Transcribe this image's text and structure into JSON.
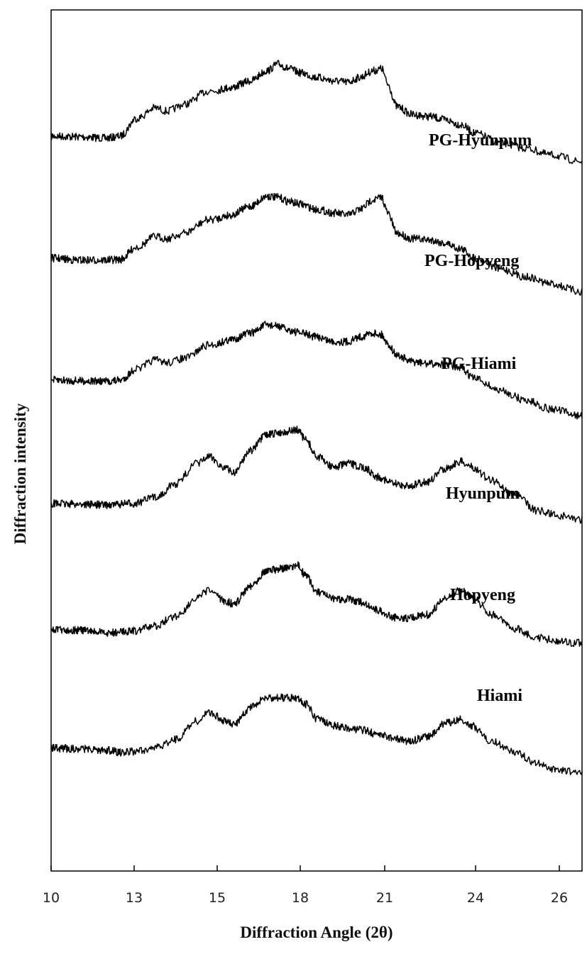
{
  "chart_data": {
    "type": "line",
    "xlabel": "Diffraction Angle (2θ)",
    "ylabel": "Diffraction intensity",
    "xlim": [
      10,
      26.5
    ],
    "x_ticks": [
      "10",
      "13",
      "15",
      "18",
      "21",
      "24",
      "26"
    ],
    "grid": false,
    "legend": "none",
    "y_tick_labels": "none",
    "series": [
      {
        "name": "PG-Hyunpum",
        "offset": 5,
        "points": [
          [
            10,
            0.98
          ],
          [
            11,
            0.97
          ],
          [
            12,
            0.95
          ],
          [
            12.5,
            0.98
          ],
          [
            13.1,
            1.25
          ],
          [
            13.5,
            1.4
          ],
          [
            13.8,
            1.35
          ],
          [
            14.2,
            1.45
          ],
          [
            14.8,
            1.65
          ],
          [
            15.5,
            1.7
          ],
          [
            16.2,
            1.8
          ],
          [
            16.8,
            1.95
          ],
          [
            17.2,
            2.05
          ],
          [
            17.6,
            1.98
          ],
          [
            18,
            1.92
          ],
          [
            18.6,
            1.85
          ],
          [
            19.2,
            1.8
          ],
          [
            19.7,
            1.78
          ],
          [
            20.1,
            1.85
          ],
          [
            20.6,
            1.95
          ],
          [
            20.9,
            1.98
          ],
          [
            21.1,
            1.75
          ],
          [
            21.4,
            1.42
          ],
          [
            21.9,
            1.3
          ],
          [
            22.5,
            1.27
          ],
          [
            23,
            1.22
          ],
          [
            23.5,
            1.15
          ],
          [
            24,
            1.02
          ],
          [
            24.6,
            0.88
          ],
          [
            25.2,
            0.8
          ],
          [
            25.8,
            0.7
          ],
          [
            26.5,
            0.6
          ]
        ]
      },
      {
        "name": "PG-Hopyeng",
        "offset": 4,
        "points": [
          [
            10,
            0.98
          ],
          [
            11,
            0.95
          ],
          [
            12,
            0.95
          ],
          [
            12.5,
            0.96
          ],
          [
            13.1,
            1.15
          ],
          [
            13.5,
            1.3
          ],
          [
            13.8,
            1.27
          ],
          [
            14.2,
            1.35
          ],
          [
            14.8,
            1.55
          ],
          [
            15.5,
            1.62
          ],
          [
            16.2,
            1.75
          ],
          [
            16.8,
            1.9
          ],
          [
            17.2,
            1.88
          ],
          [
            17.6,
            1.82
          ],
          [
            18,
            1.78
          ],
          [
            18.6,
            1.7
          ],
          [
            19.2,
            1.65
          ],
          [
            19.7,
            1.62
          ],
          [
            20.1,
            1.7
          ],
          [
            20.6,
            1.85
          ],
          [
            20.9,
            1.88
          ],
          [
            21.1,
            1.65
          ],
          [
            21.4,
            1.35
          ],
          [
            21.9,
            1.27
          ],
          [
            22.5,
            1.25
          ],
          [
            23,
            1.2
          ],
          [
            23.5,
            1.12
          ],
          [
            24,
            0.98
          ],
          [
            24.6,
            0.82
          ],
          [
            25.2,
            0.7
          ],
          [
            25.8,
            0.6
          ],
          [
            26.5,
            0.48
          ]
        ]
      },
      {
        "name": "PG-Hiami",
        "offset": 3,
        "points": [
          [
            10,
            0.98
          ],
          [
            11,
            0.97
          ],
          [
            12,
            0.96
          ],
          [
            12.5,
            0.98
          ],
          [
            13.1,
            1.15
          ],
          [
            13.5,
            1.28
          ],
          [
            13.8,
            1.24
          ],
          [
            14.2,
            1.3
          ],
          [
            14.8,
            1.5
          ],
          [
            15.5,
            1.58
          ],
          [
            16.2,
            1.68
          ],
          [
            16.8,
            1.8
          ],
          [
            17.2,
            1.78
          ],
          [
            17.6,
            1.72
          ],
          [
            18,
            1.68
          ],
          [
            18.6,
            1.62
          ],
          [
            19.2,
            1.55
          ],
          [
            19.7,
            1.55
          ],
          [
            20.1,
            1.62
          ],
          [
            20.6,
            1.68
          ],
          [
            20.9,
            1.65
          ],
          [
            21.1,
            1.52
          ],
          [
            21.4,
            1.35
          ],
          [
            21.9,
            1.25
          ],
          [
            22.5,
            1.22
          ],
          [
            23,
            1.22
          ],
          [
            23.5,
            1.15
          ],
          [
            24,
            1
          ],
          [
            24.6,
            0.82
          ],
          [
            25.2,
            0.68
          ],
          [
            25.8,
            0.55
          ],
          [
            26.5,
            0.45
          ]
        ]
      },
      {
        "name": "Hyunpum",
        "offset": 2,
        "points": [
          [
            10,
            0.96
          ],
          [
            11,
            0.95
          ],
          [
            12,
            0.94
          ],
          [
            13,
            0.96
          ],
          [
            13.5,
            1.05
          ],
          [
            14,
            1.25
          ],
          [
            14.5,
            1.55
          ],
          [
            14.8,
            1.65
          ],
          [
            15.2,
            1.5
          ],
          [
            15.6,
            1.42
          ],
          [
            16.2,
            1.75
          ],
          [
            16.8,
            1.98
          ],
          [
            17.4,
            2.02
          ],
          [
            17.9,
            2.05
          ],
          [
            18.2,
            1.9
          ],
          [
            18.6,
            1.65
          ],
          [
            19.2,
            1.5
          ],
          [
            19.7,
            1.55
          ],
          [
            20.2,
            1.5
          ],
          [
            20.8,
            1.35
          ],
          [
            21.3,
            1.25
          ],
          [
            21.8,
            1.22
          ],
          [
            22.4,
            1.28
          ],
          [
            23,
            1.48
          ],
          [
            23.5,
            1.58
          ],
          [
            23.9,
            1.5
          ],
          [
            24.4,
            1.3
          ],
          [
            24.9,
            1.1
          ],
          [
            25.5,
            0.85
          ],
          [
            26,
            0.78
          ],
          [
            26.5,
            0.72
          ]
        ]
      },
      {
        "name": "Hopyeng",
        "offset": 1,
        "points": [
          [
            10,
            0.9
          ],
          [
            11,
            0.89
          ],
          [
            12,
            0.85
          ],
          [
            13,
            0.88
          ],
          [
            13.5,
            0.95
          ],
          [
            14,
            1.1
          ],
          [
            14.5,
            1.35
          ],
          [
            14.8,
            1.48
          ],
          [
            15.2,
            1.33
          ],
          [
            15.6,
            1.28
          ],
          [
            16.2,
            1.55
          ],
          [
            16.8,
            1.78
          ],
          [
            17.4,
            1.8
          ],
          [
            17.9,
            1.85
          ],
          [
            18.2,
            1.7
          ],
          [
            18.6,
            1.45
          ],
          [
            19.2,
            1.35
          ],
          [
            19.7,
            1.35
          ],
          [
            20.2,
            1.3
          ],
          [
            20.8,
            1.18
          ],
          [
            21.3,
            1.08
          ],
          [
            21.8,
            1.07
          ],
          [
            22.4,
            1.12
          ],
          [
            23,
            1.35
          ],
          [
            23.5,
            1.48
          ],
          [
            23.9,
            1.38
          ],
          [
            24.4,
            1.12
          ],
          [
            24.9,
            0.92
          ],
          [
            25.5,
            0.78
          ],
          [
            26,
            0.72
          ],
          [
            26.5,
            0.7
          ]
        ]
      },
      {
        "name": "Hiami",
        "offset": 0,
        "points": [
          [
            10,
            0.95
          ],
          [
            11,
            0.94
          ],
          [
            12,
            0.92
          ],
          [
            12.6,
            0.88
          ],
          [
            13,
            0.9
          ],
          [
            13.5,
            0.95
          ],
          [
            14,
            1.08
          ],
          [
            14.5,
            1.35
          ],
          [
            14.8,
            1.48
          ],
          [
            15.2,
            1.35
          ],
          [
            15.6,
            1.3
          ],
          [
            16.2,
            1.55
          ],
          [
            16.8,
            1.7
          ],
          [
            17.4,
            1.7
          ],
          [
            17.9,
            1.7
          ],
          [
            18.2,
            1.6
          ],
          [
            18.6,
            1.38
          ],
          [
            19.2,
            1.28
          ],
          [
            19.7,
            1.25
          ],
          [
            20.2,
            1.22
          ],
          [
            20.8,
            1.15
          ],
          [
            21.3,
            1.1
          ],
          [
            21.8,
            1.05
          ],
          [
            22.4,
            1.12
          ],
          [
            23,
            1.32
          ],
          [
            23.5,
            1.38
          ],
          [
            23.9,
            1.28
          ],
          [
            24.4,
            1.05
          ],
          [
            24.9,
            0.9
          ],
          [
            25.5,
            0.72
          ],
          [
            26,
            0.62
          ],
          [
            26.5,
            0.6
          ]
        ]
      }
    ]
  }
}
